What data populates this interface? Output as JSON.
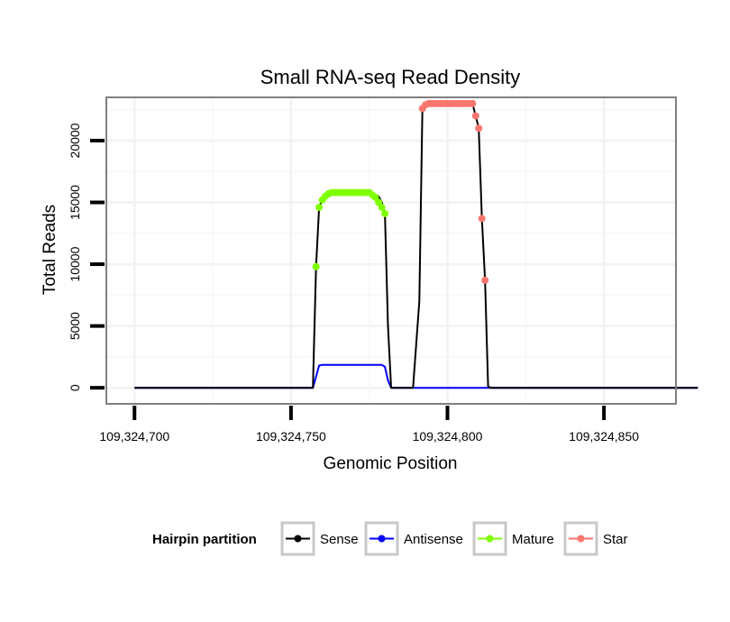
{
  "chart_data": {
    "type": "line",
    "title": "Small RNA-seq Read Density",
    "xlabel": "Genomic Position",
    "ylabel": "Total Reads",
    "xlim": [
      109324691,
      109324873
    ],
    "ylim": [
      -1300,
      23500
    ],
    "x_ticks": [
      109324700,
      109324750,
      109324800,
      109324850
    ],
    "x_tick_labels": [
      "109,324,700",
      "109,324,750",
      "109,324,800",
      "109,324,850"
    ],
    "y_ticks": [
      0,
      5000,
      10000,
      15000,
      20000
    ],
    "y_tick_labels": [
      "0",
      "5000",
      "10000",
      "15000",
      "20000"
    ],
    "grid": true,
    "legend": {
      "title": "Hairpin partition",
      "position": "bottom",
      "entries": [
        "Sense",
        "Antisense",
        "Mature",
        "Star"
      ]
    },
    "series": [
      {
        "name": "Sense",
        "color": "#000000",
        "points": false,
        "x": [
          109324700,
          109324757,
          109324758,
          109324759,
          109324760,
          109324762,
          109324765,
          109324770,
          109324775,
          109324778,
          109324779,
          109324780,
          109324781,
          109324782,
          109324783,
          109324789,
          109324791,
          109324792,
          109324793,
          109324794,
          109324795,
          109324797,
          109324800,
          109324804,
          109324808,
          109324809,
          109324810,
          109324811,
          109324812,
          109324813,
          109324814,
          109324815,
          109324880
        ],
        "values": [
          0,
          0,
          9800,
          14600,
          15200,
          15700,
          15800,
          15800,
          15800,
          15500,
          15000,
          14100,
          5000,
          0,
          0,
          0,
          7000,
          22600,
          22900,
          23000,
          23000,
          23000,
          23000,
          23000,
          23000,
          22000,
          21000,
          13700,
          8700,
          100,
          0,
          0,
          0
        ]
      },
      {
        "name": "Antisense",
        "color": "#0000ff",
        "points": false,
        "x": [
          109324700,
          109324757,
          109324758,
          109324759,
          109324760,
          109324765,
          109324770,
          109324775,
          109324779,
          109324780,
          109324781,
          109324782,
          109324790,
          109324880
        ],
        "values": [
          0,
          0,
          900,
          1800,
          1850,
          1850,
          1850,
          1850,
          1850,
          1700,
          600,
          0,
          0,
          0
        ]
      },
      {
        "name": "Mature",
        "color": "#7fff00",
        "points": true,
        "x": [
          109324758,
          109324759,
          109324760,
          109324761,
          109324762,
          109324763,
          109324764,
          109324765,
          109324766,
          109324767,
          109324768,
          109324769,
          109324770,
          109324771,
          109324772,
          109324773,
          109324774,
          109324775,
          109324776,
          109324777,
          109324778,
          109324779,
          109324780
        ],
        "values": [
          9800,
          14600,
          15200,
          15500,
          15700,
          15800,
          15800,
          15800,
          15800,
          15800,
          15800,
          15800,
          15800,
          15800,
          15800,
          15800,
          15800,
          15800,
          15600,
          15400,
          15000,
          14600,
          14100
        ]
      },
      {
        "name": "Star",
        "color": "#f8766d",
        "points": true,
        "x": [
          109324792,
          109324793,
          109324794,
          109324795,
          109324796,
          109324797,
          109324798,
          109324799,
          109324800,
          109324801,
          109324802,
          109324803,
          109324804,
          109324805,
          109324806,
          109324807,
          109324808,
          109324809,
          109324810,
          109324811,
          109324812
        ],
        "values": [
          22600,
          22900,
          23000,
          23000,
          23000,
          23000,
          23000,
          23000,
          23000,
          23000,
          23000,
          23000,
          23000,
          23000,
          23000,
          23000,
          23000,
          22000,
          21000,
          13700,
          8700
        ]
      }
    ]
  }
}
